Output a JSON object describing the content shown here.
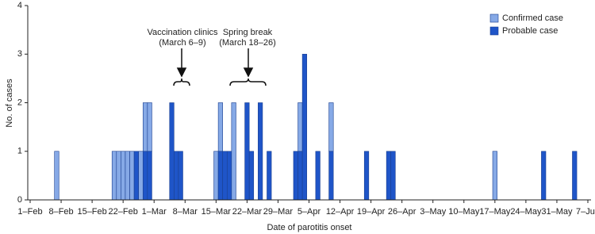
{
  "chart_data": {
    "type": "bar",
    "stacked": true,
    "xlabel": "Date of parotitis onset",
    "ylabel": "No. of cases",
    "categories": [
      "1–Feb",
      null,
      null,
      null,
      null,
      null,
      null,
      "8–Feb",
      null,
      null,
      null,
      null,
      null,
      null,
      "15–Feb",
      null,
      null,
      null,
      null,
      null,
      null,
      "22–Feb",
      null,
      null,
      null,
      null,
      null,
      null,
      "1–Mar",
      null,
      null,
      null,
      null,
      null,
      null,
      "8–Mar",
      null,
      null,
      null,
      null,
      null,
      null,
      "15–Mar",
      null,
      null,
      null,
      null,
      null,
      null,
      "22–Mar",
      null,
      null,
      null,
      null,
      null,
      null,
      "29–Mar",
      null,
      null,
      null,
      null,
      null,
      null,
      "5–Apr",
      null,
      null,
      null,
      null,
      null,
      null,
      "12–Apr",
      null,
      null,
      null,
      null,
      null,
      null,
      "19–Apr",
      null,
      null,
      null,
      null,
      null,
      null,
      "26–Apr",
      null,
      null,
      null,
      null,
      null,
      null,
      "3–May",
      null,
      null,
      null,
      null,
      null,
      null,
      "10–May",
      null,
      null,
      null,
      null,
      null,
      null,
      "17–May",
      null,
      null,
      null,
      null,
      null,
      null,
      "24–May",
      null,
      null,
      null,
      null,
      null,
      null,
      "31–May",
      null,
      null,
      null,
      null,
      null,
      null,
      "7–Jun"
    ],
    "series": [
      {
        "name": "Confirmed case",
        "color": "#86a9e6",
        "values": [
          0,
          0,
          0,
          0,
          0,
          0,
          1,
          0,
          0,
          0,
          0,
          0,
          0,
          0,
          0,
          0,
          0,
          0,
          0,
          1,
          1,
          1,
          1,
          1,
          0,
          1,
          1,
          1,
          0,
          0,
          0,
          0,
          0,
          0,
          0,
          0,
          0,
          0,
          0,
          0,
          0,
          0,
          1,
          1,
          0,
          0,
          2,
          0,
          0,
          0,
          0,
          0,
          0,
          0,
          0,
          0,
          0,
          0,
          0,
          0,
          0,
          1,
          0,
          0,
          0,
          0,
          0,
          0,
          1,
          0,
          0,
          0,
          0,
          0,
          0,
          0,
          0,
          0,
          0,
          0,
          0,
          0,
          0,
          0,
          0,
          0,
          0,
          0,
          0,
          0,
          0,
          0,
          0,
          0,
          0,
          0,
          0,
          0,
          0,
          0,
          0,
          0,
          0,
          0,
          0,
          1,
          0,
          0,
          0,
          0,
          0,
          0,
          0,
          0,
          0,
          0,
          0,
          0,
          0,
          0,
          0,
          0,
          0,
          0,
          0,
          0,
          0
        ]
      },
      {
        "name": "Probable case",
        "color": "#1f55c8",
        "values": [
          0,
          0,
          0,
          0,
          0,
          0,
          0,
          0,
          0,
          0,
          0,
          0,
          0,
          0,
          0,
          0,
          0,
          0,
          0,
          0,
          0,
          0,
          0,
          0,
          1,
          0,
          1,
          1,
          0,
          0,
          0,
          0,
          2,
          1,
          1,
          0,
          0,
          0,
          0,
          0,
          0,
          0,
          0,
          1,
          1,
          1,
          0,
          0,
          0,
          2,
          1,
          0,
          2,
          0,
          1,
          0,
          0,
          0,
          0,
          0,
          1,
          1,
          3,
          0,
          0,
          1,
          0,
          0,
          1,
          0,
          0,
          0,
          0,
          0,
          0,
          0,
          1,
          0,
          0,
          0,
          0,
          1,
          1,
          0,
          0,
          0,
          0,
          0,
          0,
          0,
          0,
          0,
          0,
          0,
          0,
          0,
          0,
          0,
          0,
          0,
          0,
          0,
          0,
          0,
          0,
          0,
          0,
          0,
          0,
          0,
          0,
          0,
          0,
          0,
          0,
          0,
          1,
          0,
          0,
          0,
          0,
          0,
          0,
          1,
          0,
          0,
          0
        ]
      }
    ],
    "ylim": [
      0,
      4
    ],
    "yticks": [
      0,
      1,
      2,
      3,
      4
    ],
    "legend": "top-right",
    "annotations": [
      {
        "lines": [
          "Vaccination clinics",
          "(March 6–9)"
        ]
      },
      {
        "lines": [
          "Spring break",
          "(March 18–26)"
        ]
      }
    ]
  }
}
